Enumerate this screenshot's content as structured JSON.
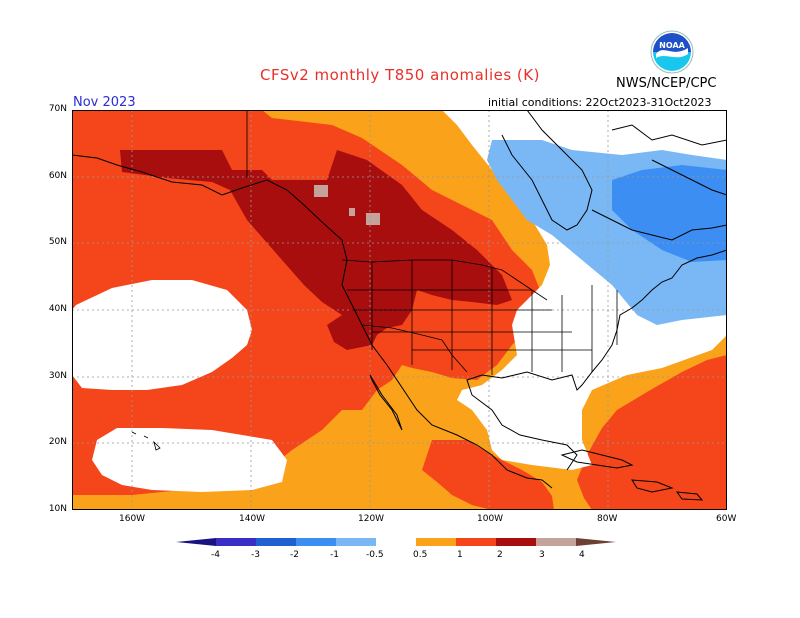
{
  "title": "CFSv2 monthly T850 anomalies (K)",
  "agency": "NWS/NCEP/CPC",
  "logo_text": "NOAA",
  "forecast_month": "Nov 2023",
  "initial_conditions": "initial conditions: 22Oct2023-31Oct2023",
  "latitude_labels": [
    "70N",
    "60N",
    "50N",
    "40N",
    "30N",
    "20N",
    "10N"
  ],
  "longitude_labels": [
    "160W",
    "140W",
    "120W",
    "100W",
    "80W",
    "60W"
  ],
  "legend": {
    "labels": [
      "-4",
      "-3",
      "-2",
      "-1",
      "-0.5",
      "0.5",
      "1",
      "2",
      "3",
      "4"
    ],
    "colors": [
      "#1a1280",
      "#3a2fc4",
      "#2060d0",
      "#3d8ef2",
      "#7ab8f5",
      "#ffffff",
      "#f9a21a",
      "#f5451a",
      "#a80e0e",
      "#c4a49a",
      "#6e3f33"
    ]
  },
  "colors": {
    "title": "#e8302a",
    "month": "#2b2bd6",
    "anomaly_0p5_1": "#f9a21a",
    "anomaly_1_2": "#f5451a",
    "anomaly_2_3": "#a80e0e",
    "anomaly_3_4": "#c4a49a",
    "anomaly_neg_0p5_1": "#7ab8f5",
    "anomaly_neg_1_2": "#3d8ef2"
  }
}
